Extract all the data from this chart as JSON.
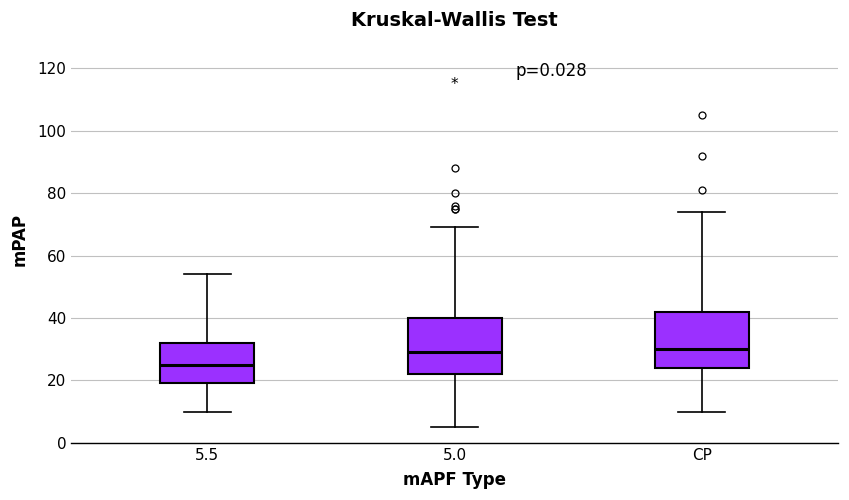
{
  "title": "Kruskal-Wallis Test",
  "pvalue_text": "p=0.028",
  "xlabel": "mAPF Type",
  "ylabel": "mPAP",
  "categories": [
    "5.5",
    "5.0",
    "CP"
  ],
  "ylim": [
    0,
    130
  ],
  "yticks": [
    0,
    20,
    40,
    60,
    80,
    100,
    120
  ],
  "box_color": "#9B30FF",
  "box_edge_color": "#000000",
  "median_color": "#000000",
  "whisker_color": "#000000",
  "cap_color": "#000000",
  "flier_color": "#000000",
  "background_color": "#ffffff",
  "grid_color": "#c0c0c0",
  "boxes": [
    {
      "q1": 19,
      "median": 25,
      "q3": 32,
      "whislo": 10,
      "whishi": 54
    },
    {
      "q1": 22,
      "median": 29,
      "q3": 40,
      "whislo": 5,
      "whishi": 69
    },
    {
      "q1": 24,
      "median": 30,
      "q3": 42,
      "whislo": 10,
      "whishi": 74
    }
  ],
  "fliers": [
    [],
    [
      75,
      75,
      76,
      80,
      88,
      115
    ],
    [
      81,
      92,
      105
    ]
  ],
  "star_flier_index": 5,
  "title_fontsize": 14,
  "label_fontsize": 12,
  "tick_fontsize": 11,
  "pvalue_fontsize": 12,
  "box_width": 0.38
}
